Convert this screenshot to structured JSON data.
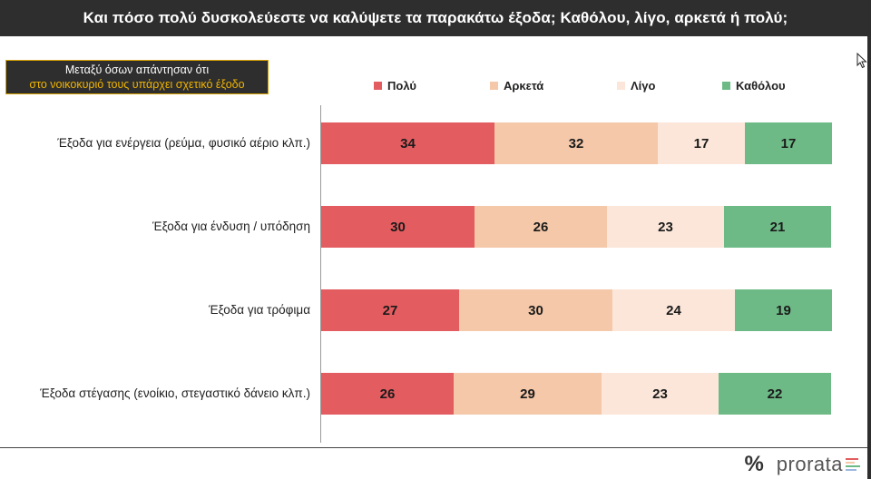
{
  "title": "Και πόσο πολύ δυσκολεύεστε να καλύψετε τα παρακάτω έξοδα; Καθόλου, λίγο, αρκετά ή πολύ;",
  "subset_note": {
    "line1": "Μεταξύ όσων απάντησαν ότι",
    "line2": "στο νοικοκυριό τους υπάρχει σχετικό έξοδο"
  },
  "logo": {
    "symbol": "%",
    "word": "prorata"
  },
  "colors": {
    "poly": "#e35c60",
    "arketa": "#f4c8a9",
    "ligo": "#fbe6d9",
    "katholou": "#6dba86"
  },
  "chart_data": {
    "type": "bar",
    "orientation": "horizontal",
    "stacked": true,
    "categories": [
      "Έξοδα για ενέργεια (ρεύμα, φυσικό αέριο κλπ.)",
      "Έξοδα για ένδυση / υπόδηση",
      "Έξοδα για τρόφιμα",
      "Έξοδα στέγασης (ενοίκιο, στεγαστικό δάνειο κλπ.)"
    ],
    "series": [
      {
        "name": "Πολύ",
        "values": [
          34,
          30,
          27,
          26
        ]
      },
      {
        "name": "Αρκετά",
        "values": [
          32,
          26,
          30,
          29
        ]
      },
      {
        "name": "Λίγο",
        "values": [
          17,
          23,
          24,
          23
        ]
      },
      {
        "name": "Καθόλου",
        "values": [
          17,
          21,
          19,
          22
        ]
      }
    ],
    "xlim": [
      0,
      100
    ],
    "legend": "top",
    "data_labels": true
  }
}
